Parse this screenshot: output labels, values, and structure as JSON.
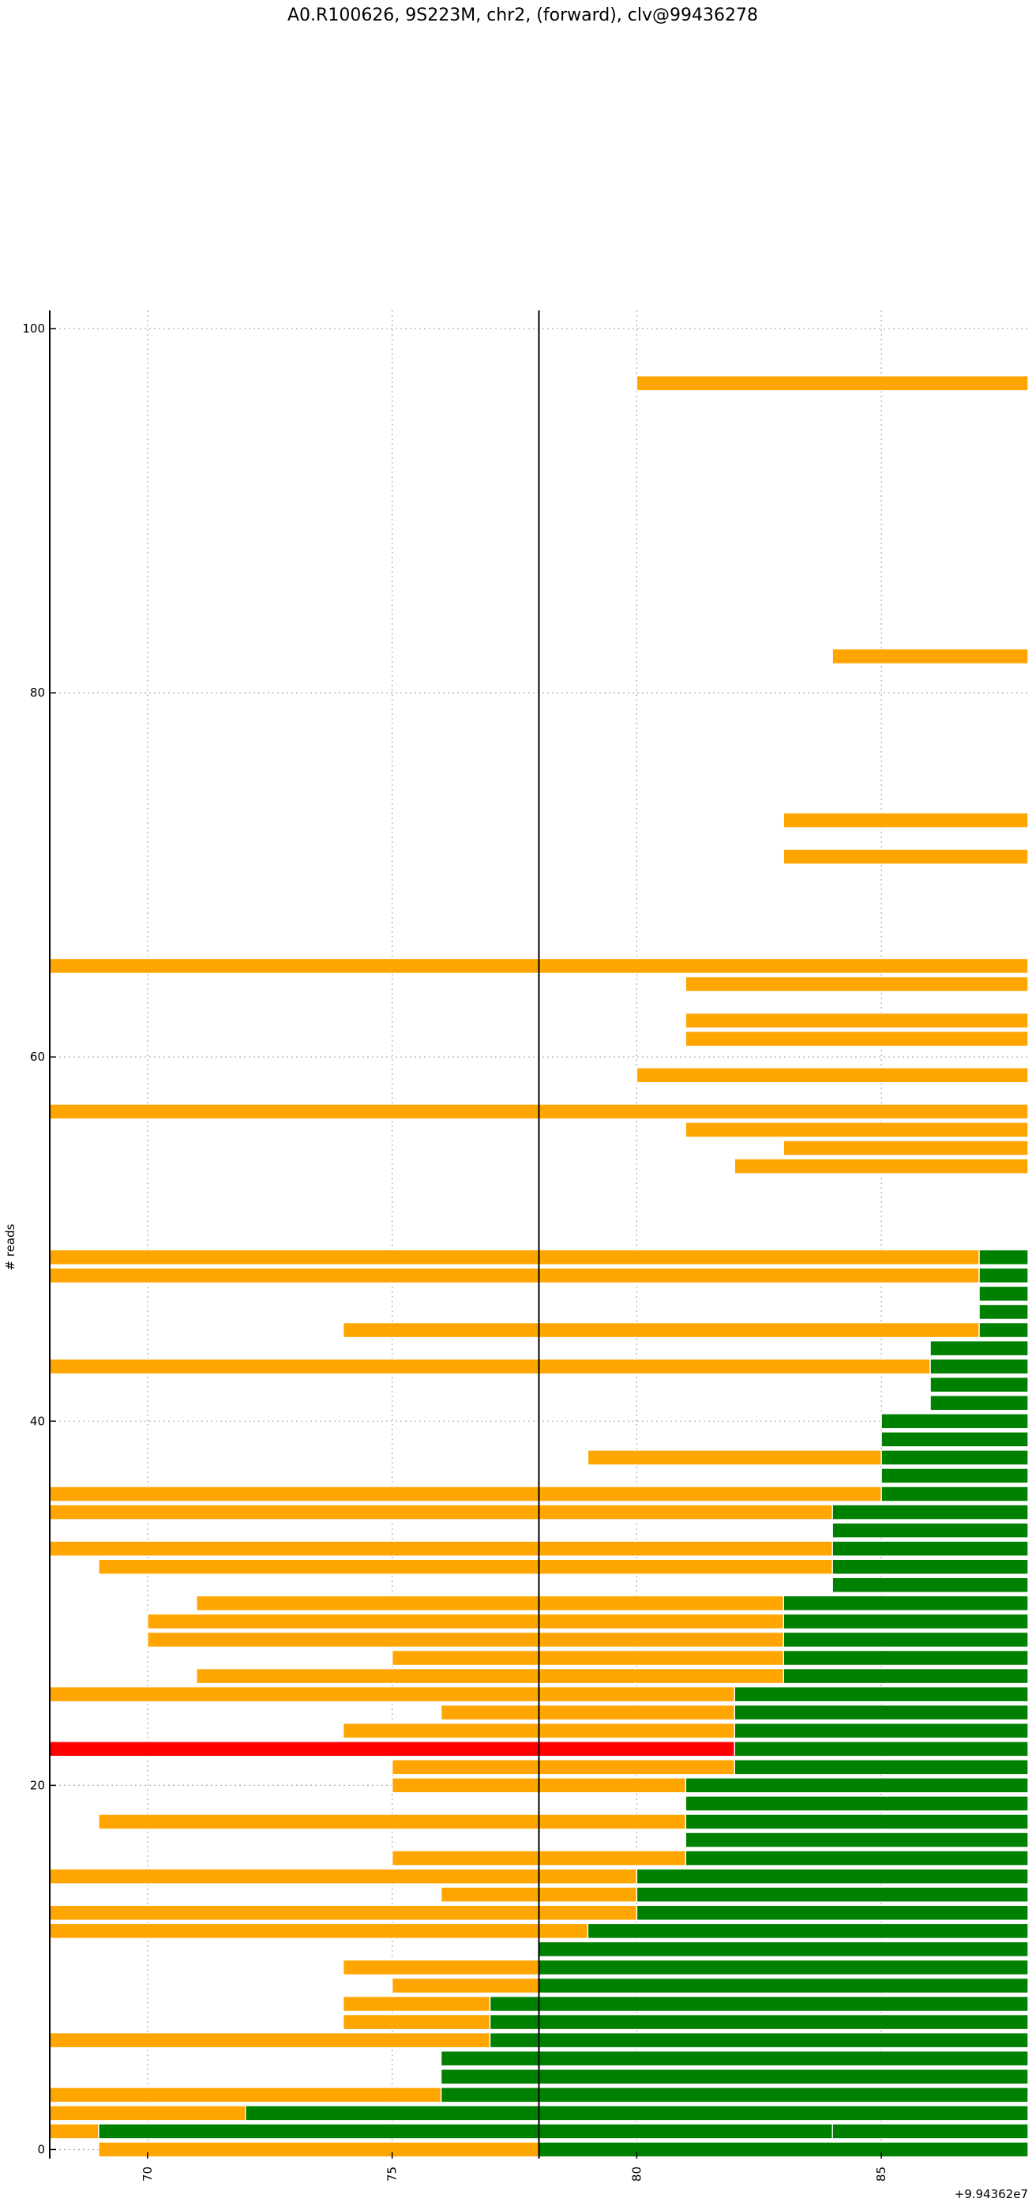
{
  "chart_data": {
    "type": "bar",
    "title": "A0.R100626, 9S223M, chr2, (forward), clv@99436278",
    "ylabel": "# reads",
    "xlabel": "",
    "x_offset_label": "+9.94362e7",
    "xlim": [
      68,
      88
    ],
    "ylim": [
      -0.5,
      101
    ],
    "x_ticks": [
      70,
      75,
      80,
      85
    ],
    "x_tick_labels": [
      "70",
      "75",
      "80",
      "85"
    ],
    "y_ticks": [
      0,
      20,
      40,
      60,
      80,
      100
    ],
    "y_tick_labels": [
      "0",
      "20",
      "40",
      "60",
      "80",
      "100"
    ],
    "grid": true,
    "cleavage_site_x": 78,
    "colors": {
      "read": "#ffa500",
      "tail": "#008000",
      "highlight": "#ff0000",
      "axis": "#000000",
      "grid": "#aaaaaa"
    },
    "reads": [
      {
        "y": 0,
        "segments": [
          [
            69,
            78,
            "read"
          ],
          [
            78,
            88,
            "tail"
          ]
        ]
      },
      {
        "y": 1,
        "segments": [
          [
            68,
            69,
            "read"
          ],
          [
            69,
            84,
            "tail"
          ],
          [
            84,
            88,
            "tail"
          ]
        ]
      },
      {
        "y": 2,
        "segments": [
          [
            68,
            72,
            "read"
          ],
          [
            72,
            88,
            "tail"
          ]
        ]
      },
      {
        "y": 3,
        "segments": [
          [
            68,
            76,
            "read"
          ],
          [
            76,
            88,
            "tail"
          ]
        ]
      },
      {
        "y": 4,
        "segments": [
          [
            76,
            88,
            "tail"
          ]
        ]
      },
      {
        "y": 5,
        "segments": [
          [
            76,
            88,
            "tail"
          ]
        ]
      },
      {
        "y": 6,
        "segments": [
          [
            68,
            77,
            "read"
          ],
          [
            77,
            88,
            "tail"
          ]
        ]
      },
      {
        "y": 7,
        "segments": [
          [
            74,
            77,
            "read"
          ],
          [
            77,
            88,
            "tail"
          ]
        ]
      },
      {
        "y": 8,
        "segments": [
          [
            74,
            77,
            "read"
          ],
          [
            77,
            88,
            "tail"
          ]
        ]
      },
      {
        "y": 9,
        "segments": [
          [
            75,
            78,
            "read"
          ],
          [
            78,
            88,
            "tail"
          ]
        ]
      },
      {
        "y": 10,
        "segments": [
          [
            74,
            78,
            "read"
          ],
          [
            78,
            88,
            "tail"
          ]
        ]
      },
      {
        "y": 11,
        "segments": [
          [
            78,
            88,
            "tail"
          ]
        ]
      },
      {
        "y": 12,
        "segments": [
          [
            68,
            79,
            "read"
          ],
          [
            79,
            88,
            "tail"
          ]
        ]
      },
      {
        "y": 13,
        "segments": [
          [
            68,
            80,
            "read"
          ],
          [
            80,
            88,
            "tail"
          ]
        ]
      },
      {
        "y": 14,
        "segments": [
          [
            76,
            80,
            "read"
          ],
          [
            80,
            88,
            "tail"
          ]
        ]
      },
      {
        "y": 15,
        "segments": [
          [
            68,
            80,
            "read"
          ],
          [
            80,
            88,
            "tail"
          ]
        ]
      },
      {
        "y": 16,
        "segments": [
          [
            75,
            81,
            "read"
          ],
          [
            81,
            88,
            "tail"
          ]
        ]
      },
      {
        "y": 17,
        "segments": [
          [
            81,
            88,
            "tail"
          ]
        ]
      },
      {
        "y": 18,
        "segments": [
          [
            69,
            81,
            "read"
          ],
          [
            81,
            88,
            "tail"
          ]
        ]
      },
      {
        "y": 19,
        "segments": [
          [
            81,
            88,
            "tail"
          ]
        ]
      },
      {
        "y": 20,
        "segments": [
          [
            75,
            81,
            "read"
          ],
          [
            81,
            88,
            "tail"
          ]
        ]
      },
      {
        "y": 21,
        "segments": [
          [
            75,
            82,
            "read"
          ],
          [
            82,
            88,
            "tail"
          ]
        ]
      },
      {
        "y": 22,
        "segments": [
          [
            68,
            82,
            "highlight"
          ],
          [
            82,
            88,
            "tail"
          ]
        ]
      },
      {
        "y": 23,
        "segments": [
          [
            74,
            82,
            "read"
          ],
          [
            82,
            88,
            "tail"
          ]
        ]
      },
      {
        "y": 24,
        "segments": [
          [
            76,
            82,
            "read"
          ],
          [
            82,
            88,
            "tail"
          ]
        ]
      },
      {
        "y": 25,
        "segments": [
          [
            68,
            82,
            "read"
          ],
          [
            82,
            88,
            "tail"
          ]
        ]
      },
      {
        "y": 26,
        "segments": [
          [
            71,
            83,
            "read"
          ],
          [
            83,
            88,
            "tail"
          ]
        ]
      },
      {
        "y": 27,
        "segments": [
          [
            75,
            83,
            "read"
          ],
          [
            83,
            88,
            "tail"
          ]
        ]
      },
      {
        "y": 28,
        "segments": [
          [
            70,
            83,
            "read"
          ],
          [
            83,
            88,
            "tail"
          ]
        ]
      },
      {
        "y": 29,
        "segments": [
          [
            70,
            83,
            "read"
          ],
          [
            83,
            88,
            "tail"
          ]
        ]
      },
      {
        "y": 30,
        "segments": [
          [
            71,
            83,
            "read"
          ],
          [
            83,
            88,
            "tail"
          ]
        ]
      },
      {
        "y": 31,
        "segments": [
          [
            84,
            88,
            "tail"
          ]
        ]
      },
      {
        "y": 32,
        "segments": [
          [
            69,
            84,
            "read"
          ],
          [
            84,
            88,
            "tail"
          ]
        ]
      },
      {
        "y": 33,
        "segments": [
          [
            68,
            84,
            "read"
          ],
          [
            84,
            88,
            "tail"
          ]
        ]
      },
      {
        "y": 34,
        "segments": [
          [
            84,
            88,
            "tail"
          ]
        ]
      },
      {
        "y": 35,
        "segments": [
          [
            68,
            84,
            "read"
          ],
          [
            84,
            88,
            "tail"
          ]
        ]
      },
      {
        "y": 36,
        "segments": [
          [
            68,
            85,
            "read"
          ],
          [
            85,
            88,
            "tail"
          ]
        ]
      },
      {
        "y": 37,
        "segments": [
          [
            85,
            88,
            "tail"
          ]
        ]
      },
      {
        "y": 38,
        "segments": [
          [
            79,
            85,
            "read"
          ],
          [
            85,
            88,
            "tail"
          ]
        ]
      },
      {
        "y": 39,
        "segments": [
          [
            85,
            88,
            "tail"
          ]
        ]
      },
      {
        "y": 40,
        "segments": [
          [
            85,
            88,
            "tail"
          ]
        ]
      },
      {
        "y": 41,
        "segments": [
          [
            86,
            88,
            "tail"
          ]
        ]
      },
      {
        "y": 42,
        "segments": [
          [
            86,
            88,
            "tail"
          ]
        ]
      },
      {
        "y": 43,
        "segments": [
          [
            68,
            86,
            "read"
          ],
          [
            86,
            88,
            "tail"
          ]
        ]
      },
      {
        "y": 44,
        "segments": [
          [
            86,
            88,
            "tail"
          ]
        ]
      },
      {
        "y": 45,
        "segments": [
          [
            74,
            87,
            "read"
          ],
          [
            87,
            88,
            "tail"
          ]
        ]
      },
      {
        "y": 46,
        "segments": [
          [
            87,
            88,
            "tail"
          ]
        ]
      },
      {
        "y": 47,
        "segments": [
          [
            87,
            88,
            "tail"
          ]
        ]
      },
      {
        "y": 48,
        "segments": [
          [
            68,
            87,
            "read"
          ],
          [
            87,
            88,
            "tail"
          ]
        ]
      },
      {
        "y": 49,
        "segments": [
          [
            68,
            87,
            "read"
          ],
          [
            87,
            88,
            "tail"
          ]
        ]
      },
      {
        "y": 54,
        "segments": [
          [
            82,
            88,
            "read"
          ]
        ]
      },
      {
        "y": 55,
        "segments": [
          [
            83,
            88,
            "read"
          ]
        ]
      },
      {
        "y": 56,
        "segments": [
          [
            81,
            88,
            "read"
          ]
        ]
      },
      {
        "y": 57,
        "segments": [
          [
            68,
            88,
            "read"
          ]
        ]
      },
      {
        "y": 59,
        "segments": [
          [
            80,
            88,
            "read"
          ]
        ]
      },
      {
        "y": 61,
        "segments": [
          [
            81,
            88,
            "read"
          ]
        ]
      },
      {
        "y": 62,
        "segments": [
          [
            81,
            88,
            "read"
          ]
        ]
      },
      {
        "y": 64,
        "segments": [
          [
            81,
            88,
            "read"
          ]
        ]
      },
      {
        "y": 65,
        "segments": [
          [
            68,
            88,
            "read"
          ]
        ]
      },
      {
        "y": 71,
        "segments": [
          [
            83,
            88,
            "read"
          ]
        ]
      },
      {
        "y": 73,
        "segments": [
          [
            83,
            88,
            "read"
          ]
        ]
      },
      {
        "y": 82,
        "segments": [
          [
            84,
            88,
            "read"
          ]
        ]
      },
      {
        "y": 97,
        "segments": [
          [
            80,
            88,
            "read"
          ]
        ]
      }
    ]
  }
}
